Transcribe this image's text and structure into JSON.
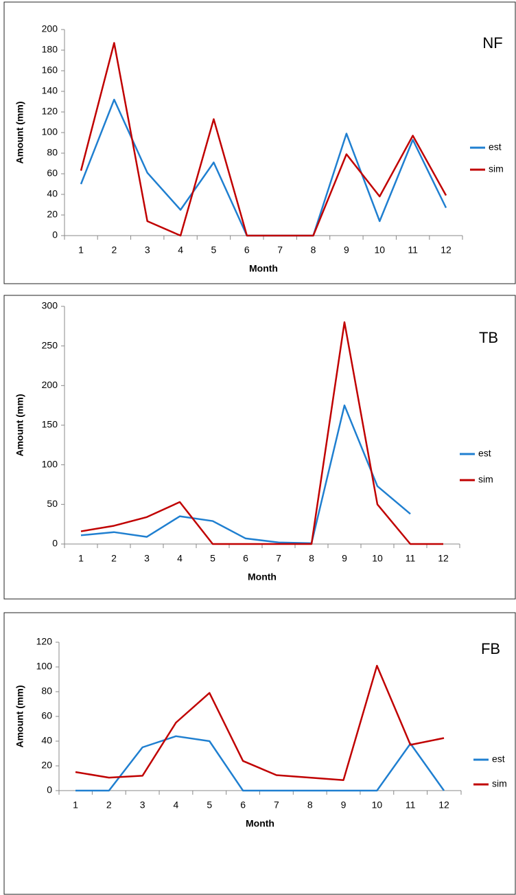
{
  "chart_data": [
    {
      "type": "line",
      "label": "NF",
      "x_label": "Month",
      "y_label": "Amount (mm)",
      "categories": [
        "1",
        "2",
        "3",
        "4",
        "5",
        "6",
        "7",
        "8",
        "9",
        "10",
        "11",
        "12"
      ],
      "series": [
        {
          "name": "est",
          "color": "#1f7fd0",
          "values": [
            50,
            132,
            61,
            25,
            71,
            0,
            0,
            0,
            99,
            14,
            93,
            27
          ]
        },
        {
          "name": "sim",
          "color": "#c00000",
          "values": [
            63,
            187,
            14,
            0,
            113,
            0,
            0,
            0,
            79,
            38,
            97,
            39
          ]
        }
      ],
      "ylim": [
        0,
        200
      ],
      "yticks": [
        0,
        20,
        40,
        60,
        80,
        100,
        120,
        140,
        160,
        180,
        200
      ]
    },
    {
      "type": "line",
      "label": "TB",
      "x_label": "Month",
      "y_label": "Amount (mm)",
      "categories": [
        "1",
        "2",
        "3",
        "4",
        "5",
        "6",
        "7",
        "8",
        "9",
        "10",
        "11",
        "12"
      ],
      "series": [
        {
          "name": "est",
          "color": "#1f7fd0",
          "values": [
            11,
            15,
            9,
            35,
            29,
            7,
            2,
            1,
            175,
            73,
            38,
            null
          ]
        },
        {
          "name": "sim",
          "color": "#c00000",
          "values": [
            16,
            23,
            34,
            53,
            0,
            0,
            0,
            0,
            280,
            50,
            0,
            0
          ]
        }
      ],
      "ylim": [
        0,
        300
      ],
      "yticks": [
        0,
        50,
        100,
        150,
        200,
        250,
        300
      ]
    },
    {
      "type": "line",
      "label": "FB",
      "x_label": "Month",
      "y_label": "Amount (mm)",
      "categories": [
        "1",
        "2",
        "3",
        "4",
        "5",
        "6",
        "7",
        "8",
        "9",
        "10",
        "11",
        "12"
      ],
      "series": [
        {
          "name": "est",
          "color": "#1f7fd0",
          "values": [
            0,
            0,
            35,
            44,
            40,
            0,
            0,
            0,
            0,
            0,
            38,
            0
          ]
        },
        {
          "name": "sim",
          "color": "#c00000",
          "values": [
            15,
            10.5,
            12,
            55,
            79,
            24,
            12.5,
            10.5,
            8.5,
            101,
            37,
            42.5
          ]
        }
      ],
      "ylim": [
        0,
        120
      ],
      "yticks": [
        0,
        20,
        40,
        60,
        80,
        100,
        120
      ]
    }
  ]
}
